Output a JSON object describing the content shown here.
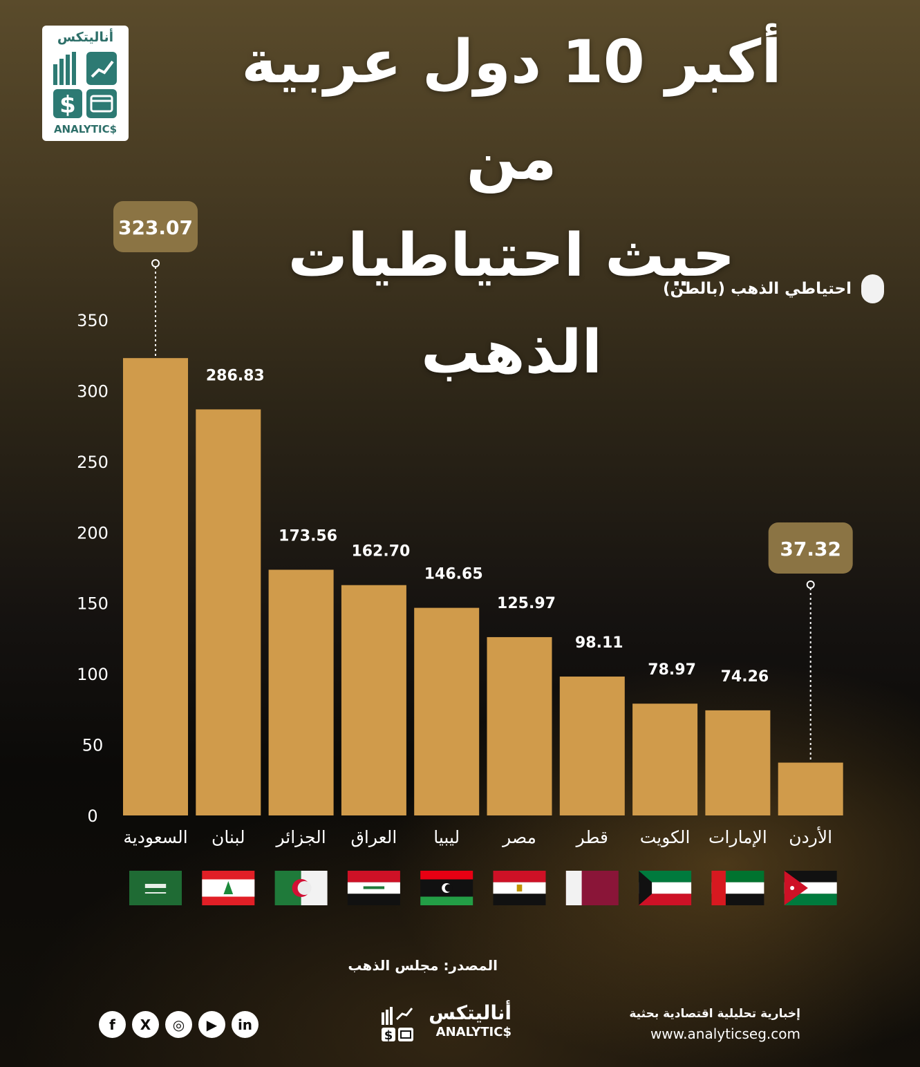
{
  "header": {
    "title_line1": "أكبر 10 دول عربية من",
    "title_line2": "حيث احتياطيات الذهب"
  },
  "logo": {
    "ar": "أناليتكس",
    "en": "ANALYTIC$"
  },
  "legend": {
    "label": "احتياطي الذهب (بالطن)",
    "color": "#f2f2f2"
  },
  "chart_data": {
    "type": "bar",
    "categories": [
      "السعودية",
      "لبنان",
      "الجزائر",
      "العراق",
      "ليبيا",
      "مصر",
      "قطر",
      "الكويت",
      "الإمارات",
      "الأردن"
    ],
    "values": [
      323.07,
      286.83,
      173.56,
      162.7,
      146.65,
      125.97,
      98.11,
      78.97,
      74.26,
      37.32
    ],
    "value_labels": [
      "323.07",
      "286.83",
      "173.56",
      "162.70",
      "146.65",
      "125.97",
      "98.11",
      "78.97",
      "74.26",
      "37.32"
    ],
    "highlighted": [
      0,
      9
    ],
    "ylim": [
      0,
      350
    ],
    "yticks": [
      "0",
      "50",
      "100",
      "150",
      "200",
      "250",
      "300",
      "350"
    ],
    "bar_color": "#d09b4b",
    "callout_color": "#8b7444",
    "flags": [
      "saudi-flag-icon",
      "lebanon-flag-icon",
      "algeria-flag-icon",
      "iraq-flag-icon",
      "libya-flag-icon",
      "egypt-flag-icon",
      "qatar-flag-icon",
      "kuwait-flag-icon",
      "uae-flag-icon",
      "jordan-flag-icon"
    ]
  },
  "footer": {
    "source": "المصدر: مجلس الذهب",
    "tagline": "إخبارية تحليلية اقتصادية بحثية",
    "website": "www.analyticseg.com",
    "brand_ar": "أناليتكس",
    "brand_en": "ANALYTIC$",
    "social": [
      "facebook-icon",
      "x-icon",
      "instagram-icon",
      "youtube-icon",
      "linkedin-icon"
    ],
    "social_glyphs": [
      "f",
      "X",
      "◎",
      "▶",
      "in"
    ]
  }
}
